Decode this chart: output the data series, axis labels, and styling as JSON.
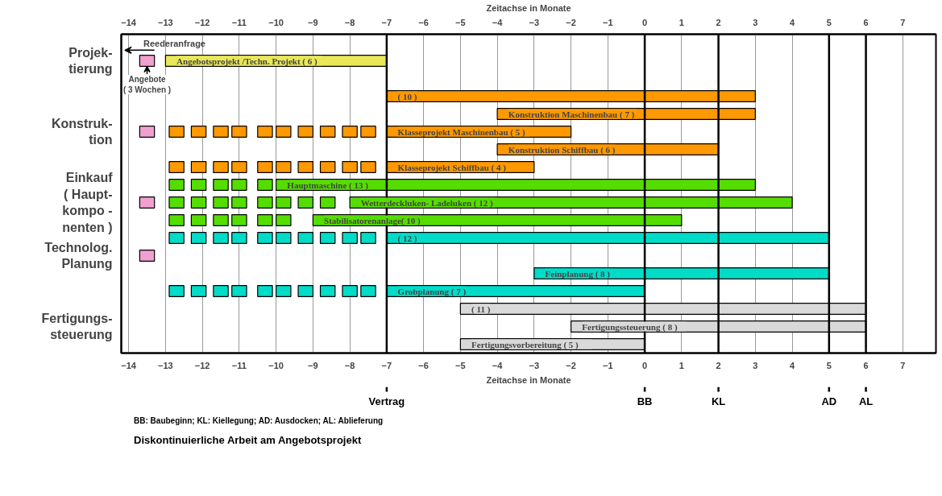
{
  "chart_data": {
    "type": "bar",
    "orientation": "horizontal",
    "xlabel": "Zeitachse in Monate",
    "x2label": "Zeitachse in Monate",
    "categories": [
      null,
      "Projek-\ntierung",
      null,
      null,
      null,
      "Konstruk-\ntion",
      null,
      null,
      null,
      "Einkauf\n( Haupt-\nkompo -\nnenten )",
      null,
      null,
      "Technolog.\nPlanung",
      null,
      null,
      null,
      "Fertigungs-\nsteuerung",
      null
    ],
    "xlim": [
      -14.2,
      7.9
    ],
    "xticks": [
      -14,
      -13,
      -12,
      -11,
      -10,
      -9,
      -8,
      -7,
      -6,
      -5,
      -4,
      -3,
      -2,
      -1,
      0,
      1,
      2,
      3,
      4,
      5,
      6,
      7
    ],
    "x2lim": [
      -14.2,
      7.9
    ],
    "x2ticks": [
      -14,
      -13,
      -12,
      -11,
      -10,
      -9,
      -8,
      -7,
      -6,
      -5,
      -4,
      -3,
      -2,
      -1,
      0,
      1,
      2,
      3,
      4,
      5,
      6,
      7
    ],
    "grid": "x",
    "series": [
      {
        "base": [
          null,
          -13,
          null,
          -7,
          -4,
          -7,
          -4,
          -7,
          -10,
          -8,
          -9,
          -7,
          null,
          -3,
          -7,
          -5,
          -2,
          -5
        ],
        "values": [
          null,
          6,
          null,
          10,
          7,
          5,
          6,
          4,
          13,
          12,
          10,
          12,
          null,
          8,
          7,
          11,
          8,
          5
        ],
        "colors": [
          null,
          "#e8e85a",
          null,
          "#ff9900",
          "#ff9900",
          "#ff9900",
          "#ff9900",
          "#ff9900",
          "#55dd00",
          "#55dd00",
          "#55dd00",
          "#00dcc8",
          null,
          "#00dcc8",
          "#00dcc8",
          "#d9d9d9",
          "#d9d9d9",
          "#d9d9d9"
        ],
        "value_labels": [
          null,
          "Angebotsprojekt /Techn. Projekt   ( 6 )",
          null,
          "( 10 )",
          "Konstruktion Maschinenbau  ( 7 )",
          "Klasseprojekt   Maschinenbau ( 5 )",
          "Konstruktion Schiffbau ( 6 )",
          "Klasseprojekt Schiffbau ( 4 )",
          "Hauptmaschine ( 13 )",
          "Wetterdeckluken- Ladeluken  ( 12 )",
          "Stabilisatorenanlage( 10 )",
          "( 12 )",
          null,
          "Feinplanung ( 8 )",
          "Grobplanung ( 7 )",
          "( 11 )",
          "Fertigungssteuerung     ( 8 )",
          "Fertigungsvorbereitung       ( 5 )"
        ]
      },
      {
        "base": [
          null,
          -13.7,
          null,
          null,
          null,
          -13.7,
          null,
          null,
          null,
          -13.7,
          null,
          null,
          -13.7,
          null,
          null,
          null,
          null,
          null
        ],
        "values": [
          null,
          0.4,
          null,
          null,
          null,
          0.4,
          null,
          null,
          null,
          0.4,
          null,
          null,
          0.4,
          null,
          null,
          null,
          null,
          null
        ],
        "colors": [
          null,
          "#f0a0d0",
          null,
          null,
          null,
          "#f0a0d0",
          null,
          null,
          null,
          "#f0a0d0",
          null,
          null,
          "#f0a0d0",
          null,
          null,
          null,
          null,
          null
        ]
      },
      {
        "base": [
          null,
          null,
          null,
          null,
          null,
          -12.9,
          null,
          -12.9,
          -12.9,
          -12.9,
          -12.9,
          -12.9,
          null,
          null,
          -12.9,
          null,
          null,
          null
        ],
        "values": [
          null,
          null,
          null,
          null,
          null,
          0.4,
          null,
          0.4,
          0.4,
          0.4,
          0.4,
          0.4,
          null,
          null,
          0.4,
          null,
          null,
          null
        ],
        "colors": [
          null,
          null,
          null,
          null,
          null,
          "#ff9900",
          null,
          "#ff9900",
          "#55dd00",
          "#55dd00",
          "#55dd00",
          "#00dcc8",
          null,
          null,
          "#00dcc8",
          null,
          null,
          null
        ]
      },
      {
        "base": [
          null,
          null,
          null,
          null,
          null,
          -12.3,
          null,
          -12.3,
          -12.3,
          -12.3,
          -12.3,
          -12.3,
          null,
          null,
          -12.3,
          null,
          null,
          null
        ],
        "values": [
          null,
          null,
          null,
          null,
          null,
          0.4,
          null,
          0.4,
          0.4,
          0.4,
          0.4,
          0.4,
          null,
          null,
          0.4,
          null,
          null,
          null
        ],
        "colors": [
          null,
          null,
          null,
          null,
          null,
          "#ff9900",
          null,
          "#ff9900",
          "#55dd00",
          "#55dd00",
          "#55dd00",
          "#00dcc8",
          null,
          null,
          "#00dcc8",
          null,
          null,
          null
        ]
      },
      {
        "base": [
          null,
          null,
          null,
          null,
          null,
          -11.7,
          null,
          -11.7,
          -11.7,
          -11.7,
          -11.7,
          -11.7,
          null,
          null,
          -11.7,
          null,
          null,
          null
        ],
        "values": [
          null,
          null,
          null,
          null,
          null,
          0.4,
          null,
          0.4,
          0.4,
          0.4,
          0.4,
          0.4,
          null,
          null,
          0.4,
          null,
          null,
          null
        ],
        "colors": [
          null,
          null,
          null,
          null,
          null,
          "#ff9900",
          null,
          "#ff9900",
          "#55dd00",
          "#55dd00",
          "#55dd00",
          "#00dcc8",
          null,
          null,
          "#00dcc8",
          null,
          null,
          null
        ]
      },
      {
        "base": [
          null,
          null,
          null,
          null,
          null,
          -11.2,
          null,
          -11.2,
          -11.2,
          -11.2,
          -11.2,
          -11.2,
          null,
          null,
          -11.2,
          null,
          null,
          null
        ],
        "values": [
          null,
          null,
          null,
          null,
          null,
          0.4,
          null,
          0.4,
          0.4,
          0.4,
          0.4,
          0.4,
          null,
          null,
          0.4,
          null,
          null,
          null
        ],
        "colors": [
          null,
          null,
          null,
          null,
          null,
          "#ff9900",
          null,
          "#ff9900",
          "#55dd00",
          "#55dd00",
          "#55dd00",
          "#00dcc8",
          null,
          null,
          "#00dcc8",
          null,
          null,
          null
        ]
      },
      {
        "base": [
          null,
          null,
          null,
          null,
          null,
          -10.5,
          null,
          -10.5,
          -10.5,
          -10.5,
          -10.5,
          -10.5,
          null,
          null,
          -10.5,
          null,
          null,
          null
        ],
        "values": [
          null,
          null,
          null,
          null,
          null,
          0.4,
          null,
          0.4,
          0.4,
          0.4,
          0.4,
          0.4,
          null,
          null,
          0.4,
          null,
          null,
          null
        ],
        "colors": [
          null,
          null,
          null,
          null,
          null,
          "#ff9900",
          null,
          "#ff9900",
          "#55dd00",
          "#55dd00",
          "#55dd00",
          "#00dcc8",
          null,
          null,
          "#00dcc8",
          null,
          null,
          null
        ]
      },
      {
        "base": [
          null,
          null,
          null,
          null,
          null,
          -10.0,
          null,
          -10.0,
          null,
          -10.0,
          -10.0,
          -10.0,
          null,
          null,
          -10.0,
          null,
          null,
          null
        ],
        "values": [
          null,
          null,
          null,
          null,
          null,
          0.4,
          null,
          0.4,
          null,
          0.4,
          0.4,
          0.4,
          null,
          null,
          0.4,
          null,
          null,
          null
        ],
        "colors": [
          null,
          null,
          null,
          null,
          null,
          "#ff9900",
          null,
          "#ff9900",
          null,
          "#55dd00",
          "#55dd00",
          "#00dcc8",
          null,
          null,
          "#00dcc8",
          null,
          null,
          null
        ]
      },
      {
        "base": [
          null,
          null,
          null,
          null,
          null,
          -9.4,
          null,
          -9.4,
          null,
          -9.4,
          null,
          -9.4,
          null,
          null,
          -9.4,
          null,
          null,
          null
        ],
        "values": [
          null,
          null,
          null,
          null,
          null,
          0.4,
          null,
          0.4,
          null,
          0.4,
          null,
          0.4,
          null,
          null,
          0.4,
          null,
          null,
          null
        ],
        "colors": [
          null,
          null,
          null,
          null,
          null,
          "#ff9900",
          null,
          "#ff9900",
          null,
          "#55dd00",
          null,
          "#00dcc8",
          null,
          null,
          "#00dcc8",
          null,
          null,
          null
        ]
      },
      {
        "base": [
          null,
          null,
          null,
          null,
          null,
          -8.8,
          null,
          -8.8,
          null,
          -8.8,
          null,
          -8.8,
          null,
          null,
          -8.8,
          null,
          null,
          null
        ],
        "values": [
          null,
          null,
          null,
          null,
          null,
          0.4,
          null,
          0.4,
          null,
          0.4,
          null,
          0.4,
          null,
          null,
          0.4,
          null,
          null,
          null
        ],
        "colors": [
          null,
          null,
          null,
          null,
          null,
          "#ff9900",
          null,
          "#ff9900",
          null,
          "#55dd00",
          null,
          "#00dcc8",
          null,
          null,
          "#00dcc8",
          null,
          null,
          null
        ]
      },
      {
        "base": [
          null,
          null,
          null,
          null,
          null,
          -8.2,
          null,
          -8.2,
          null,
          null,
          null,
          -8.2,
          null,
          null,
          -8.2,
          null,
          null,
          null
        ],
        "values": [
          null,
          null,
          null,
          null,
          null,
          0.4,
          null,
          0.4,
          null,
          null,
          null,
          0.4,
          null,
          null,
          0.4,
          null,
          null,
          null
        ],
        "colors": [
          null,
          null,
          null,
          null,
          null,
          "#ff9900",
          null,
          "#ff9900",
          null,
          null,
          null,
          "#00dcc8",
          null,
          null,
          "#00dcc8",
          null,
          null,
          null
        ]
      },
      {
        "base": [
          null,
          null,
          null,
          null,
          null,
          -7.7,
          null,
          -7.7,
          null,
          null,
          null,
          -7.7,
          null,
          null,
          -7.7,
          null,
          null,
          null
        ],
        "values": [
          null,
          null,
          null,
          null,
          null,
          0.4,
          null,
          0.4,
          null,
          null,
          null,
          0.4,
          null,
          null,
          0.4,
          null,
          null,
          null
        ],
        "colors": [
          null,
          null,
          null,
          null,
          null,
          "#ff9900",
          null,
          "#ff9900",
          null,
          null,
          null,
          "#00dcc8",
          null,
          null,
          "#00dcc8",
          null,
          null,
          null
        ]
      }
    ],
    "ref_lines": [
      {
        "axis": "x",
        "value": -7,
        "label": "Vertrag"
      },
      {
        "axis": "x",
        "value": 0,
        "label": "BB"
      },
      {
        "axis": "x",
        "value": 2,
        "label": "KL"
      },
      {
        "axis": "x",
        "value": 5,
        "label": "AD"
      },
      {
        "axis": "x",
        "value": 6,
        "label": "AL"
      }
    ],
    "annotations": [
      "Reederanfrage",
      "Angebote\n( 3 Wochen )",
      "BB: Baubeginn; KL: Kiellegung; AD: Ausdocken; AL: Ablieferung",
      "Diskontinuierliche Arbeit am Angebotsprojekt"
    ]
  }
}
